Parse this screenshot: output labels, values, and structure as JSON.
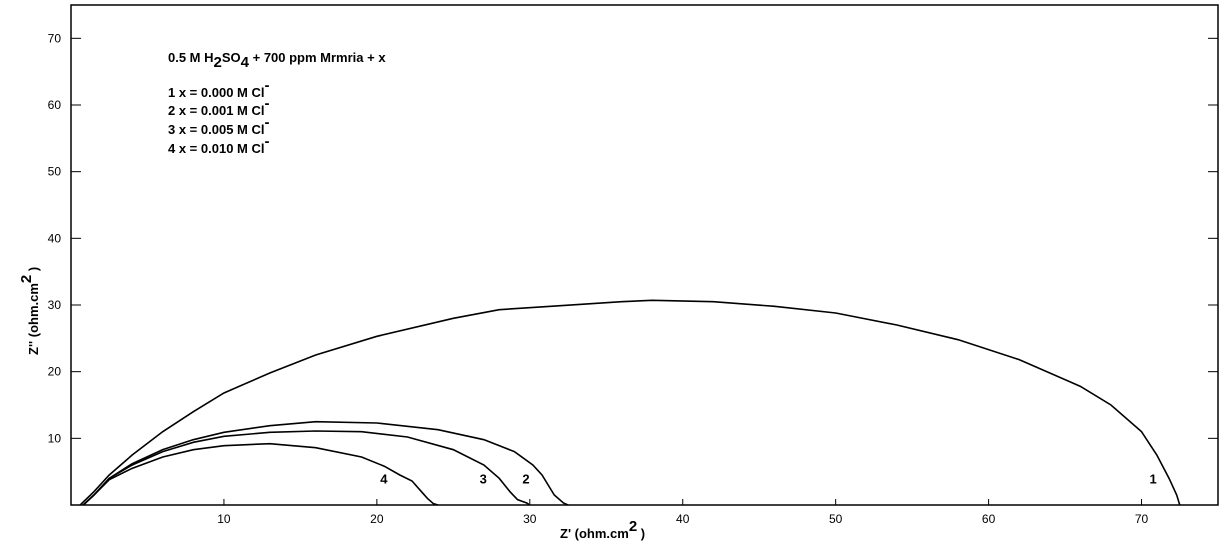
{
  "chart_data": {
    "type": "line",
    "xlabel": [
      {
        "text": "Z'  (ohm.cm"
      },
      {
        "text": "2",
        "sup": true
      },
      {
        "text": " )"
      }
    ],
    "ylabel": [
      {
        "text": "Z'' (ohm.cm"
      },
      {
        "text": "2",
        "sup": true
      },
      {
        "text": " )"
      }
    ],
    "annotation": [
      [
        {
          "text": "0.5 M H"
        },
        {
          "text": "2",
          "sub": true
        },
        {
          "text": "SO"
        },
        {
          "text": "4",
          "sub": true
        },
        {
          "text": " + 700 ppm Mrmria + x"
        }
      ],
      [
        {
          "text": "1 x = 0.000 M Cl"
        },
        {
          "text": "-",
          "sup": true
        }
      ],
      [
        {
          "text": "2 x = 0.001 M Cl"
        },
        {
          "text": "-",
          "sup": true
        }
      ],
      [
        {
          "text": "3 x = 0.005 M Cl"
        },
        {
          "text": "-",
          "sup": true
        }
      ],
      [
        {
          "text": "4 x = 0.010 M Cl"
        },
        {
          "text": "-",
          "sup": true
        }
      ]
    ],
    "xlim": [
      0,
      75
    ],
    "ylim": [
      0,
      75
    ],
    "xticks": [
      10,
      20,
      30,
      40,
      50,
      60,
      70
    ],
    "yticks": [
      10,
      20,
      30,
      40,
      50,
      60,
      70
    ],
    "series": [
      {
        "name": "1",
        "color": "#000000",
        "x": [
          0.6,
          1.5,
          2.5,
          4,
          6,
          8,
          10,
          13,
          16,
          20,
          25,
          28,
          32,
          36,
          38,
          42,
          46,
          50,
          54,
          58,
          62,
          66,
          68,
          70,
          71,
          71.8,
          72.3,
          72.5
        ],
        "values": [
          0,
          2,
          4.5,
          7.5,
          11,
          14,
          16.8,
          19.8,
          22.5,
          25.3,
          28,
          29.3,
          29.9,
          30.5,
          30.7,
          30.5,
          29.8,
          28.8,
          27,
          24.8,
          21.8,
          17.8,
          15,
          11,
          7.5,
          4,
          1.5,
          0
        ]
      },
      {
        "name": "2",
        "color": "#000000",
        "x": [
          0.8,
          1.5,
          2.5,
          4,
          6,
          8,
          10,
          13,
          16,
          20,
          24,
          27,
          29,
          30.2,
          30.8,
          31.2,
          31.6,
          32.2,
          32.5
        ],
        "values": [
          0,
          1.5,
          4,
          6.2,
          8.3,
          9.8,
          10.9,
          11.9,
          12.5,
          12.3,
          11.3,
          9.8,
          8,
          6,
          4.5,
          3,
          1.5,
          0.3,
          0
        ]
      },
      {
        "name": "3",
        "color": "#000000",
        "x": [
          0.8,
          1.5,
          2.5,
          4,
          6,
          8,
          10,
          13,
          16,
          19,
          22,
          25,
          27,
          28,
          28.7,
          29.2,
          29.8,
          30
        ],
        "values": [
          0,
          1.5,
          4,
          6,
          8,
          9.4,
          10.3,
          10.9,
          11.1,
          11,
          10.2,
          8.3,
          6,
          4,
          2,
          0.8,
          0.3,
          0
        ]
      },
      {
        "name": "4",
        "color": "#000000",
        "x": [
          0.8,
          1.5,
          2.5,
          4,
          6,
          8,
          10,
          13,
          16,
          19,
          20.5,
          21.5,
          22.3,
          22.8,
          23.3,
          23.7,
          24
        ],
        "values": [
          0,
          1.5,
          3.8,
          5.5,
          7.2,
          8.3,
          8.9,
          9.2,
          8.6,
          7.2,
          5.8,
          4.5,
          3.6,
          2.3,
          1,
          0.2,
          0
        ]
      }
    ]
  }
}
